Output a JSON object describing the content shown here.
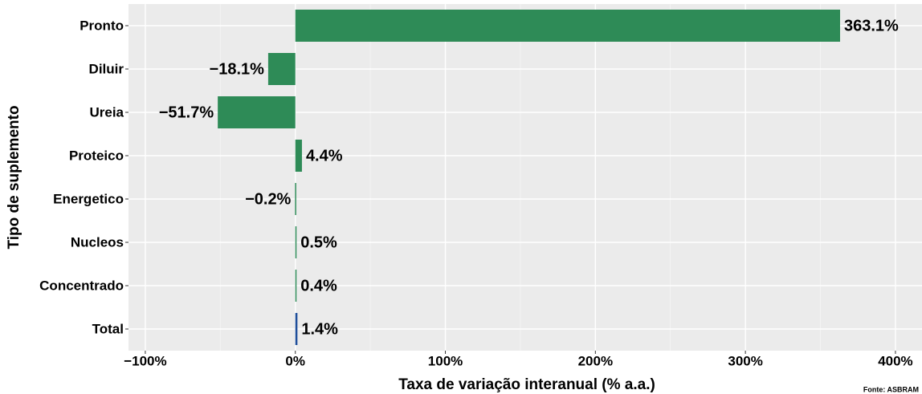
{
  "chart_data": {
    "type": "hbar",
    "categories": [
      "Pronto",
      "Diluir",
      "Ureia",
      "Proteico",
      "Energetico",
      "Nucleos",
      "Concentrado",
      "Total"
    ],
    "values": [
      363.1,
      -18.1,
      -51.7,
      4.4,
      -0.2,
      0.5,
      0.4,
      1.4
    ],
    "value_labels": [
      "363.1%",
      "−18.1%",
      "−51.7%",
      "4.4%",
      "−0.2%",
      "0.5%",
      "0.4%",
      "1.4%"
    ],
    "colors": [
      "#2e8b57",
      "#2e8b57",
      "#2e8b57",
      "#2e8b57",
      "#2e8b57",
      "#2e8b57",
      "#2e8b57",
      "#1f4e9a"
    ],
    "xlim": [
      -111.2,
      417.7
    ],
    "xticks": [
      {
        "value": -100,
        "label": "−100%"
      },
      {
        "value": 0,
        "label": "0%"
      },
      {
        "value": 100,
        "label": "100%"
      },
      {
        "value": 200,
        "label": "200%"
      },
      {
        "value": 300,
        "label": "300%"
      },
      {
        "value": 400,
        "label": "400%"
      }
    ],
    "x_label": "Taxa de variação interanual (% a.a.)",
    "y_label": "Tipo de suplemento",
    "source": "Fonte: ASBRAM",
    "grid": true
  }
}
